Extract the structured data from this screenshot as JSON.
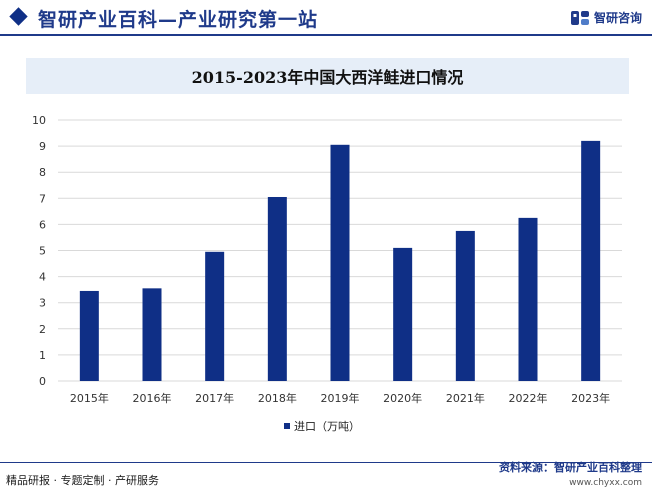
{
  "header": {
    "site_title": "智研产业百科—产业研究第一站",
    "brand_name": "智研咨询"
  },
  "footer": {
    "left_text": "精品研报 · 专题定制 · 产研服务",
    "source_text": "资料来源：智研产业百科整理",
    "url": "www.chyxx.com"
  },
  "colors": {
    "bar": "#0f2f86",
    "accent": "#1f3a8a",
    "title_band": "#e6eef8"
  },
  "chart_data": {
    "type": "bar",
    "title": "2015-2023年中国大西洋鲑进口情况",
    "categories": [
      "2015年",
      "2016年",
      "2017年",
      "2018年",
      "2019年",
      "2020年",
      "2021年",
      "2022年",
      "2023年"
    ],
    "series": [
      {
        "name": "进口（万吨）",
        "values": [
          3.45,
          3.55,
          4.95,
          7.05,
          9.05,
          5.1,
          5.75,
          6.25,
          9.2
        ]
      }
    ],
    "ylim": [
      0,
      10
    ],
    "yticks": [
      "0",
      "1",
      "2",
      "3",
      "4",
      "5",
      "6",
      "7",
      "8",
      "9",
      "10"
    ],
    "grid": true,
    "legend_position": "bottom"
  }
}
